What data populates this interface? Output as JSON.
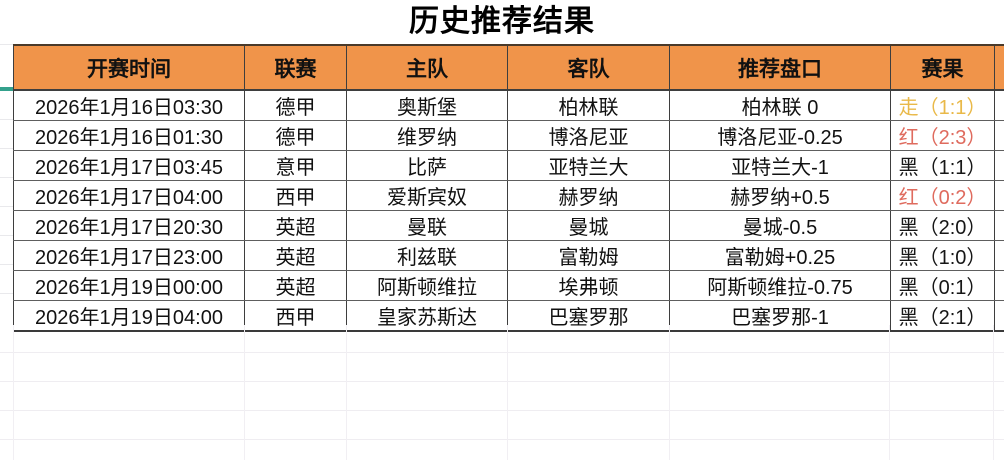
{
  "title": "历史推荐结果",
  "colors": {
    "header_bg": "#f0944a",
    "accent_teal": "#34a18c",
    "result_draw": "#e9b949",
    "result_red": "#df6b5e",
    "result_black": "#161616"
  },
  "table": {
    "headers": [
      "开赛时间",
      "联赛",
      "主队",
      "客队",
      "推荐盘口",
      "赛果"
    ],
    "rows": [
      {
        "time": "2026年1月16日03:30",
        "league": "德甲",
        "home": "奥斯堡",
        "away": "柏林联",
        "handicap": "柏林联 0",
        "handicap_align": "center",
        "result": "走（1:1）",
        "outcome": "draw"
      },
      {
        "time": "2026年1月16日01:30",
        "league": "德甲",
        "home": "维罗纳",
        "away": "博洛尼亚",
        "handicap": "博洛尼亚-0.25",
        "handicap_align": "center",
        "result": "红（2:3）",
        "outcome": "red"
      },
      {
        "time": "2026年1月17日03:45",
        "league": "意甲",
        "home": "比萨",
        "away": "亚特兰大",
        "handicap": "亚特兰大-1",
        "handicap_align": "center",
        "result": "黑（1:1）",
        "outcome": "black"
      },
      {
        "time": "2026年1月17日04:00",
        "league": "西甲",
        "home": "爱斯宾奴",
        "away": "赫罗纳",
        "handicap": "赫罗纳+0.5",
        "handicap_align": "left",
        "result": "红（0:2）",
        "outcome": "red"
      },
      {
        "time": "2026年1月17日20:30",
        "league": "英超",
        "home": "曼联",
        "away": "曼城",
        "handicap": "曼城-0.5",
        "handicap_align": "center",
        "result": "黑（2:0）",
        "outcome": "black"
      },
      {
        "time": "2026年1月17日23:00",
        "league": "英超",
        "home": "利兹联",
        "away": "富勒姆",
        "handicap": "富勒姆+0.25",
        "handicap_align": "center",
        "result": "黑（1:0）",
        "outcome": "black"
      },
      {
        "time": "2026年1月19日00:00",
        "league": "英超",
        "home": "阿斯顿维拉",
        "away": "埃弗顿",
        "handicap": "阿斯顿维拉-0.75",
        "handicap_align": "center",
        "result": "黑（0:1）",
        "outcome": "black"
      },
      {
        "time": "2026年1月19日04:00",
        "league": "西甲",
        "home": "皇家苏斯达",
        "away": "巴塞罗那",
        "handicap": "巴塞罗那-1",
        "handicap_align": "center",
        "result": "黑（2:1）",
        "outcome": "black"
      }
    ]
  }
}
